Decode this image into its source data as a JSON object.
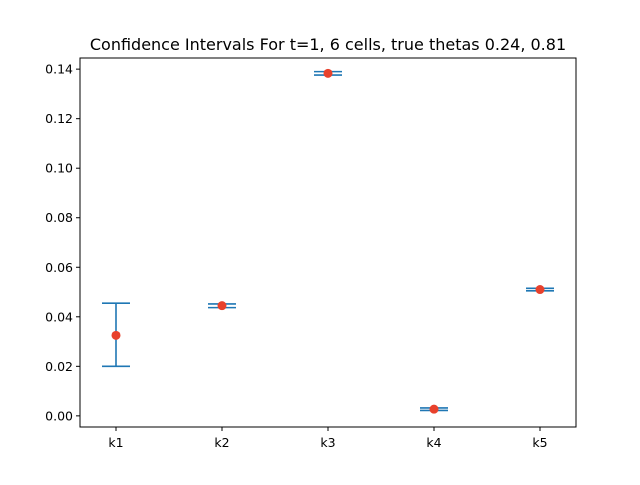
{
  "chart_data": {
    "type": "errorbar",
    "title": "Confidence Intervals For t=1, 6 cells, true thetas 0.24, 0.81",
    "xlabel": "",
    "ylabel": "",
    "categories": [
      "k1",
      "k2",
      "k3",
      "k4",
      "k5"
    ],
    "series": [
      {
        "points": [
          {
            "category": "k1",
            "value": 0.0325,
            "lower": 0.02,
            "upper": 0.0455
          },
          {
            "category": "k2",
            "value": 0.0445,
            "lower": 0.0437,
            "upper": 0.0452
          },
          {
            "category": "k3",
            "value": 0.1383,
            "lower": 0.1376,
            "upper": 0.139
          },
          {
            "category": "k4",
            "value": 0.0027,
            "lower": 0.0022,
            "upper": 0.0032
          },
          {
            "category": "k5",
            "value": 0.051,
            "lower": 0.0505,
            "upper": 0.0515
          }
        ]
      }
    ],
    "ylim": [
      -0.0045,
      0.1445
    ],
    "yticks": [
      "0.00",
      "0.02",
      "0.04",
      "0.06",
      "0.08",
      "0.10",
      "0.12",
      "0.14"
    ],
    "grid": false,
    "legend": "none",
    "colors": {
      "errorbar": "#1f77b4",
      "point": "#e8412c"
    }
  }
}
